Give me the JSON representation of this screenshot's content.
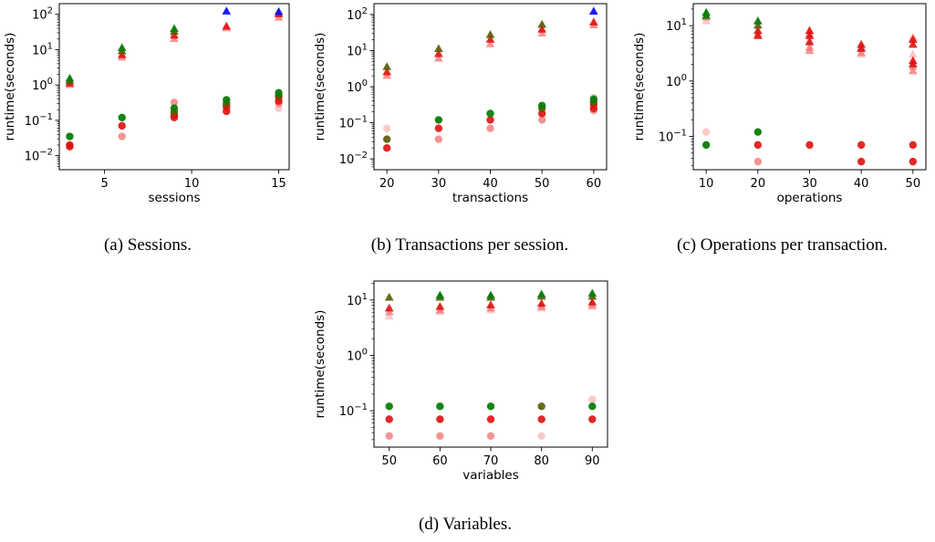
{
  "colors": {
    "green": "#0a7d0a",
    "olive": "#5a5a00",
    "red": "#e01010",
    "pink": "#f07070",
    "lightpink": "#f9c0c0",
    "blue": "#1010ee"
  },
  "chart_data": [
    {
      "type": "scatter",
      "caption": "(a) Sessions.",
      "xlabel": "sessions",
      "ylabel": "runtime(seconds)",
      "yscale": "log",
      "xlim": [
        2.4,
        15.6
      ],
      "ylim": [
        0.004,
        200
      ],
      "xticks": [
        5,
        10,
        15
      ],
      "xtick_labels": [
        "5",
        "10",
        "15"
      ],
      "yticks": [
        0.01,
        0.1,
        1,
        10,
        100
      ],
      "ytick_labels": [
        "10^-2",
        "10^-1",
        "10^0",
        "10^1",
        "10^2"
      ],
      "series": [
        {
          "marker": "triangle",
          "color": "green",
          "points": [
            [
              3,
              1.5
            ],
            [
              6,
              11
            ],
            [
              9,
              38
            ]
          ]
        },
        {
          "marker": "triangle",
          "color": "olive",
          "points": [
            [
              3,
              1.3
            ],
            [
              6,
              9
            ],
            [
              9,
              32
            ]
          ]
        },
        {
          "marker": "triangle",
          "color": "red",
          "points": [
            [
              3,
              1.1
            ],
            [
              6,
              7
            ],
            [
              9,
              25
            ],
            [
              12,
              45
            ],
            [
              15,
              100
            ]
          ]
        },
        {
          "marker": "triangle",
          "color": "pink",
          "points": [
            [
              3,
              1.0
            ],
            [
              6,
              6
            ],
            [
              9,
              20
            ],
            [
              12,
              40
            ],
            [
              15,
              80
            ]
          ]
        },
        {
          "marker": "triangle",
          "color": "blue",
          "points": [
            [
              12,
              120
            ],
            [
              15,
              115
            ]
          ]
        },
        {
          "marker": "circle",
          "color": "green",
          "points": [
            [
              3,
              0.035
            ],
            [
              6,
              0.12
            ],
            [
              9,
              0.22
            ],
            [
              12,
              0.38
            ],
            [
              15,
              0.6
            ]
          ]
        },
        {
          "marker": "circle",
          "color": "olive",
          "points": [
            [
              9,
              0.17
            ],
            [
              12,
              0.3
            ],
            [
              15,
              0.5
            ]
          ]
        },
        {
          "marker": "circle",
          "color": "red",
          "points": [
            [
              3,
              0.02
            ],
            [
              3,
              0.018
            ],
            [
              6,
              0.07
            ],
            [
              9,
              0.12
            ],
            [
              9,
              0.14
            ],
            [
              12,
              0.18
            ],
            [
              12,
              0.25
            ],
            [
              15,
              0.35
            ],
            [
              15,
              0.45
            ]
          ]
        },
        {
          "marker": "circle",
          "color": "pink",
          "points": [
            [
              6,
              0.035
            ],
            [
              9,
              0.32
            ],
            [
              12,
              0.22
            ],
            [
              15,
              0.3
            ]
          ]
        },
        {
          "marker": "circle",
          "color": "lightpink",
          "points": [
            [
              15,
              0.22
            ],
            [
              12,
              0.35
            ]
          ]
        }
      ]
    },
    {
      "type": "scatter",
      "caption": "(b) Transactions per session.",
      "xlabel": "transactions",
      "ylabel": "runtime(seconds)",
      "yscale": "log",
      "xlim": [
        17.5,
        62.5
      ],
      "ylim": [
        0.005,
        200
      ],
      "xticks": [
        20,
        30,
        40,
        50,
        60
      ],
      "xtick_labels": [
        "20",
        "30",
        "40",
        "50",
        "60"
      ],
      "yticks": [
        0.01,
        0.1,
        1,
        10,
        100
      ],
      "ytick_labels": [
        "10^-2",
        "10^-1",
        "10^0",
        "10^1",
        "10^2"
      ],
      "series": [
        {
          "marker": "triangle",
          "color": "olive",
          "points": [
            [
              20,
              3.5
            ],
            [
              30,
              11
            ],
            [
              40,
              27
            ],
            [
              50,
              52
            ]
          ]
        },
        {
          "marker": "triangle",
          "color": "red",
          "points": [
            [
              20,
              2.5
            ],
            [
              30,
              8
            ],
            [
              40,
              20
            ],
            [
              50,
              38
            ],
            [
              60,
              60
            ]
          ]
        },
        {
          "marker": "triangle",
          "color": "pink",
          "points": [
            [
              20,
              2
            ],
            [
              30,
              6
            ],
            [
              40,
              15
            ],
            [
              50,
              30
            ],
            [
              60,
              50
            ]
          ]
        },
        {
          "marker": "triangle",
          "color": "blue",
          "points": [
            [
              60,
              120
            ]
          ]
        },
        {
          "marker": "circle",
          "color": "green",
          "points": [
            [
              30,
              0.12
            ],
            [
              40,
              0.18
            ],
            [
              50,
              0.3
            ],
            [
              60,
              0.45
            ]
          ]
        },
        {
          "marker": "circle",
          "color": "olive",
          "points": [
            [
              20,
              0.035
            ],
            [
              50,
              0.25
            ],
            [
              60,
              0.38
            ]
          ]
        },
        {
          "marker": "circle",
          "color": "red",
          "points": [
            [
              20,
              0.02
            ],
            [
              30,
              0.07
            ],
            [
              40,
              0.12
            ],
            [
              50,
              0.18
            ],
            [
              60,
              0.25
            ],
            [
              60,
              0.32
            ]
          ]
        },
        {
          "marker": "circle",
          "color": "pink",
          "points": [
            [
              30,
              0.035
            ],
            [
              40,
              0.07
            ],
            [
              50,
              0.12
            ],
            [
              60,
              0.22
            ]
          ]
        },
        {
          "marker": "circle",
          "color": "lightpink",
          "points": [
            [
              20,
              0.07
            ],
            [
              60,
              0.5
            ]
          ]
        }
      ]
    },
    {
      "type": "scatter",
      "caption": "(c) Operations per transaction.",
      "xlabel": "operations",
      "ylabel": "runtime(seconds)",
      "yscale": "log",
      "xlim": [
        7.5,
        52.5
      ],
      "ylim": [
        0.025,
        25
      ],
      "xticks": [
        10,
        20,
        30,
        40,
        50
      ],
      "xtick_labels": [
        "10",
        "20",
        "30",
        "40",
        "50"
      ],
      "yticks": [
        0.1,
        1,
        10
      ],
      "ytick_labels": [
        "10^-1",
        "10^0",
        "10^1"
      ],
      "series": [
        {
          "marker": "triangle",
          "color": "green",
          "points": [
            [
              10,
              17
            ],
            [
              10,
              15
            ],
            [
              20,
              12
            ]
          ]
        },
        {
          "marker": "triangle",
          "color": "olive",
          "points": [
            [
              20,
              10
            ]
          ]
        },
        {
          "marker": "triangle",
          "color": "red",
          "points": [
            [
              20,
              8
            ],
            [
              20,
              6.5
            ],
            [
              30,
              8
            ],
            [
              30,
              6.5
            ],
            [
              30,
              5
            ],
            [
              40,
              4.5
            ],
            [
              40,
              3.8
            ],
            [
              50,
              5.5
            ],
            [
              50,
              4.5
            ],
            [
              50,
              2.3
            ],
            [
              50,
              2
            ]
          ]
        },
        {
          "marker": "triangle",
          "color": "pink",
          "points": [
            [
              10,
              14
            ],
            [
              20,
              7
            ],
            [
              30,
              7
            ],
            [
              30,
              4
            ],
            [
              30,
              3.5
            ],
            [
              40,
              4
            ],
            [
              40,
              3.2
            ],
            [
              50,
              6
            ],
            [
              50,
              1.8
            ],
            [
              50,
              1.5
            ]
          ]
        },
        {
          "marker": "triangle",
          "color": "lightpink",
          "points": [
            [
              10,
              12
            ],
            [
              30,
              5.5
            ],
            [
              40,
              3
            ],
            [
              50,
              3
            ]
          ]
        },
        {
          "marker": "circle",
          "color": "green",
          "points": [
            [
              10,
              0.07
            ],
            [
              20,
              0.12
            ]
          ]
        },
        {
          "marker": "circle",
          "color": "red",
          "points": [
            [
              20,
              0.07
            ],
            [
              30,
              0.07
            ],
            [
              40,
              0.07
            ],
            [
              40,
              0.035
            ],
            [
              50,
              0.07
            ],
            [
              50,
              0.035
            ]
          ]
        },
        {
          "marker": "circle",
          "color": "pink",
          "points": [
            [
              20,
              0.035
            ]
          ]
        },
        {
          "marker": "circle",
          "color": "lightpink",
          "points": [
            [
              10,
              0.12
            ]
          ]
        }
      ]
    },
    {
      "type": "scatter",
      "caption": "(d) Variables.",
      "xlabel": "variables",
      "ylabel": "runtime(seconds)",
      "yscale": "log",
      "xlim": [
        47,
        93
      ],
      "ylim": [
        0.022,
        22
      ],
      "xticks": [
        50,
        60,
        70,
        80,
        90
      ],
      "xtick_labels": [
        "50",
        "60",
        "70",
        "80",
        "90"
      ],
      "yticks": [
        0.1,
        1,
        10
      ],
      "ytick_labels": [
        "10^-1",
        "10^0",
        "10^1"
      ],
      "series": [
        {
          "marker": "triangle",
          "color": "green",
          "points": [
            [
              60,
              12
            ],
            [
              70,
              12
            ],
            [
              80,
              12.5
            ],
            [
              90,
              13
            ]
          ]
        },
        {
          "marker": "triangle",
          "color": "olive",
          "points": [
            [
              50,
              11
            ],
            [
              60,
              11
            ],
            [
              70,
              11
            ],
            [
              80,
              11.5
            ],
            [
              90,
              11.5
            ]
          ]
        },
        {
          "marker": "triangle",
          "color": "red",
          "points": [
            [
              50,
              7
            ],
            [
              60,
              7.5
            ],
            [
              70,
              8
            ],
            [
              80,
              8.5
            ],
            [
              90,
              9
            ]
          ]
        },
        {
          "marker": "triangle",
          "color": "pink",
          "points": [
            [
              50,
              6
            ],
            [
              60,
              6.5
            ],
            [
              70,
              7
            ],
            [
              80,
              7.5
            ],
            [
              90,
              8
            ]
          ]
        },
        {
          "marker": "triangle",
          "color": "lightpink",
          "points": [
            [
              50,
              5
            ],
            [
              60,
              6
            ],
            [
              70,
              6.5
            ],
            [
              80,
              7
            ],
            [
              90,
              7.5
            ]
          ]
        },
        {
          "marker": "circle",
          "color": "green",
          "points": [
            [
              50,
              0.12
            ],
            [
              60,
              0.12
            ],
            [
              70,
              0.12
            ],
            [
              90,
              0.12
            ]
          ]
        },
        {
          "marker": "circle",
          "color": "olive",
          "points": [
            [
              80,
              0.12
            ]
          ]
        },
        {
          "marker": "circle",
          "color": "red",
          "points": [
            [
              50,
              0.07
            ],
            [
              60,
              0.07
            ],
            [
              70,
              0.07
            ],
            [
              80,
              0.07
            ],
            [
              90,
              0.07
            ]
          ]
        },
        {
          "marker": "circle",
          "color": "pink",
          "points": [
            [
              50,
              0.035
            ],
            [
              60,
              0.035
            ],
            [
              70,
              0.035
            ]
          ]
        },
        {
          "marker": "circle",
          "color": "lightpink",
          "points": [
            [
              80,
              0.035
            ],
            [
              90,
              0.16
            ]
          ]
        }
      ]
    }
  ]
}
